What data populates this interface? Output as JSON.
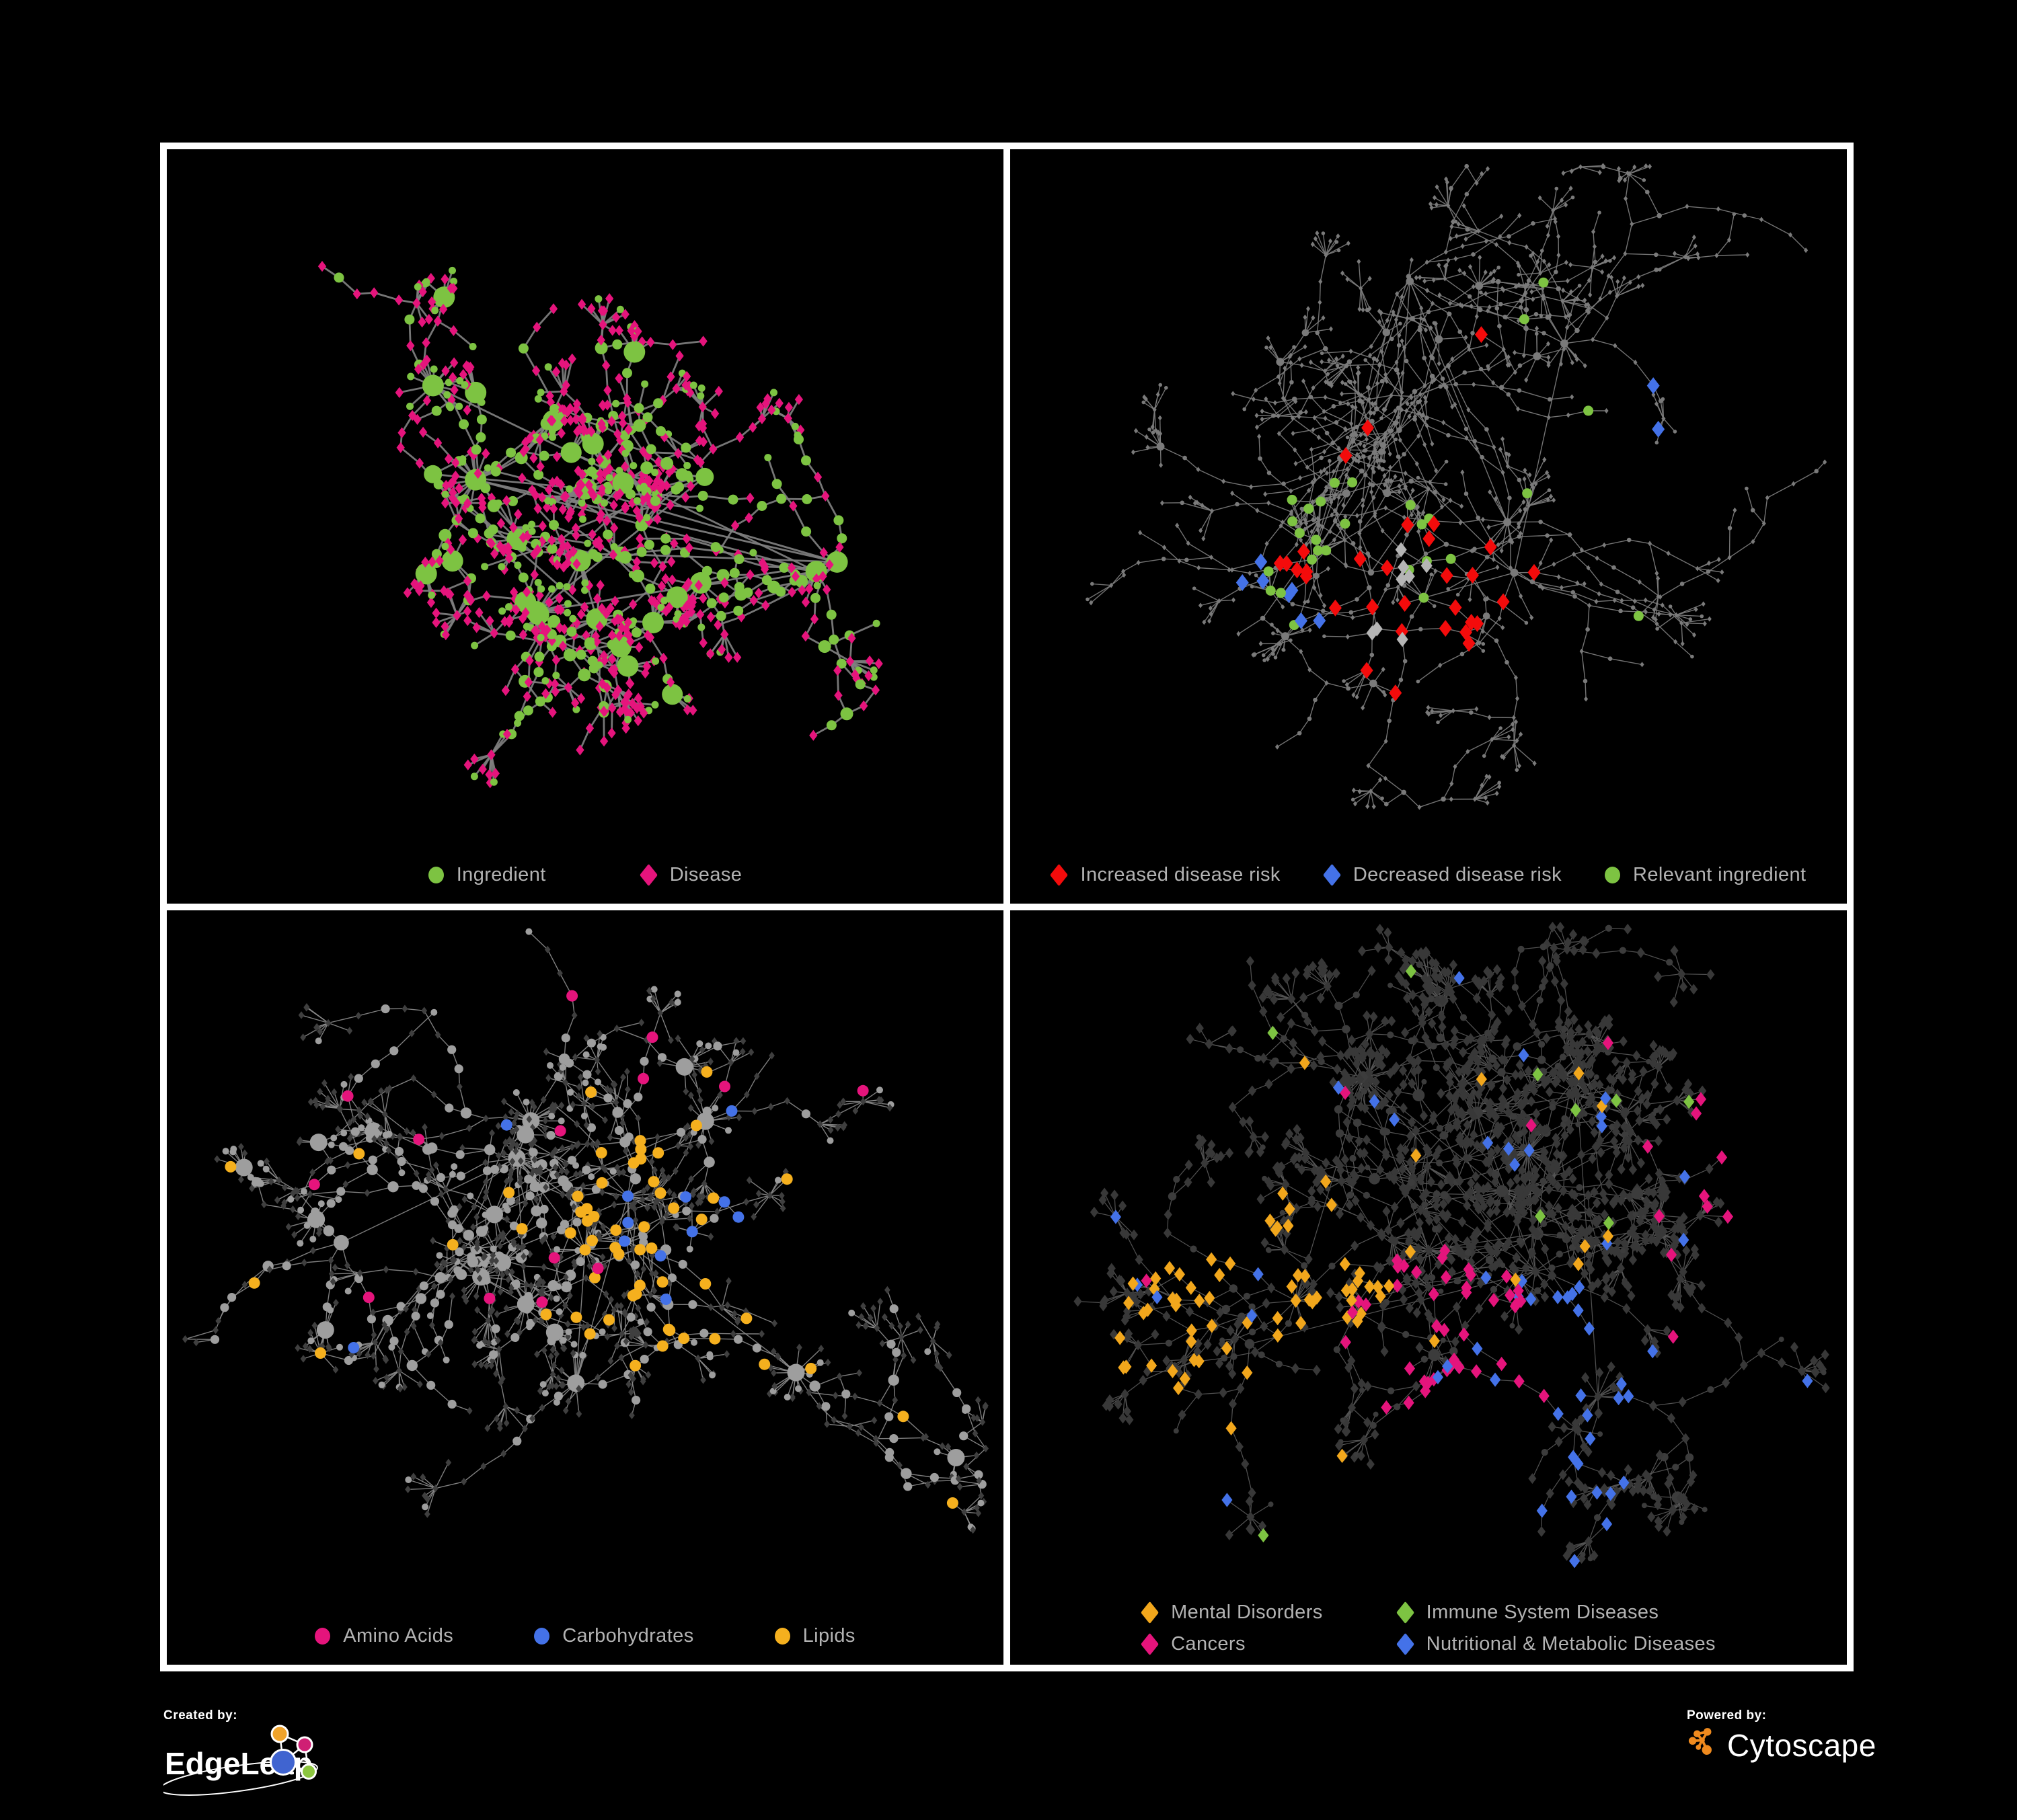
{
  "figure": {
    "background": "#000000",
    "frame_color": "#ffffff",
    "legend_text_color": "#b3b3b3"
  },
  "panels": [
    {
      "name": "ingredient-disease-network",
      "legend": [
        {
          "label": "Ingredient",
          "shape": "circle",
          "color": "#7dc342"
        },
        {
          "label": "Disease",
          "shape": "diamond",
          "color": "#e5147c"
        }
      ],
      "network": {
        "seed": 7,
        "hubs": 12,
        "spread": 0.34,
        "branchesPerHub": [
          3,
          5
        ],
        "branchLen": [
          3,
          7
        ],
        "step": [
          24,
          46
        ],
        "subBranchProb": 0.22,
        "burstProb": 0.45,
        "burstLeaves": [
          5,
          11
        ],
        "hubBurstProb": 0.72,
        "hubBurstLeaves": [
          7,
          14
        ],
        "edge": {
          "color": "#808080",
          "width": 2.8
        },
        "base": {
          "circleColor": "#7dc342",
          "diamondColor": "#e5147c",
          "circleR": [
            5.5,
            16
          ],
          "circleGrow": 2.0,
          "diamondR": 6.5,
          "circleProb": {
            "hub": 1.0,
            "chain": 0.48,
            "leaf": 0.26
          }
        },
        "paints": []
      }
    },
    {
      "name": "disease-risk-network",
      "legend": [
        {
          "label": "Increased disease risk",
          "shape": "diamond",
          "color": "#f40b0b"
        },
        {
          "label": "Decreased disease risk",
          "shape": "diamond",
          "color": "#4472e8"
        },
        {
          "label": "Relevant ingredient",
          "shape": "circle",
          "color": "#7dc342"
        }
      ],
      "network": {
        "seed": 29,
        "hubs": 11,
        "spread": 0.37,
        "branchesPerHub": [
          3,
          5
        ],
        "branchLen": [
          4,
          8
        ],
        "step": [
          26,
          50
        ],
        "subBranchProb": 0.26,
        "burstProb": 0.4,
        "burstLeaves": [
          4,
          9
        ],
        "hubBurstProb": 0.55,
        "hubBurstLeaves": [
          6,
          12
        ],
        "edge": {
          "color": "#7d7d7d",
          "width": 1.4
        },
        "base": {
          "circleColor": "#7a7a7a",
          "diamondColor": "#7a7a7a",
          "circleR": [
            2.8,
            6
          ],
          "circleGrow": 0.5,
          "diamondR": 3.2,
          "circleProb": {
            "hub": 0.9,
            "chain": 0.42,
            "leaf": 0.22
          }
        },
        "paints": [
          {
            "target": "diamond",
            "color": "#f40b0b",
            "size": 10,
            "count": 20,
            "at": {
              "fx": 0.5,
              "fy": 0.68
            }
          },
          {
            "target": "diamond",
            "color": "#f40b0b",
            "size": 10,
            "count": 6,
            "at": {
              "fx": 0.32,
              "fy": 0.62
            }
          },
          {
            "target": "diamond",
            "color": "#f40b0b",
            "size": 10,
            "count": 5,
            "scatter": true
          },
          {
            "target": "diamond",
            "color": "#4472e8",
            "size": 10,
            "count": 7,
            "at": {
              "fx": 0.33,
              "fy": 0.66
            }
          },
          {
            "target": "diamond",
            "color": "#4472e8",
            "size": 10,
            "count": 2,
            "at": {
              "fx": 0.82,
              "fy": 0.38
            }
          },
          {
            "target": "diamond",
            "color": "#b5b5b5",
            "size": 9,
            "count": 8,
            "at": {
              "fx": 0.47,
              "fy": 0.65
            }
          },
          {
            "target": "circle",
            "color": "#7dc342",
            "size": 7.5,
            "count": 22,
            "at": {
              "fx": 0.42,
              "fy": 0.62
            }
          },
          {
            "target": "circle",
            "color": "#7dc342",
            "size": 7.5,
            "count": 6,
            "scatter": true
          }
        ]
      }
    },
    {
      "name": "nutrient-class-network",
      "legend": [
        {
          "label": "Amino Acids",
          "shape": "circle",
          "color": "#e5147c"
        },
        {
          "label": "Carbohydrates",
          "shape": "circle",
          "color": "#4472e8"
        },
        {
          "label": "Lipids",
          "shape": "circle",
          "color": "#f5b01e"
        }
      ],
      "network": {
        "seed": 83,
        "hubs": 12,
        "spread": 0.34,
        "branchesPerHub": [
          3,
          5
        ],
        "branchLen": [
          3,
          8
        ],
        "step": [
          25,
          48
        ],
        "subBranchProb": 0.24,
        "burstProb": 0.45,
        "burstLeaves": [
          5,
          10
        ],
        "hubBurstProb": 0.85,
        "hubBurstLeaves": [
          10,
          20
        ],
        "edge": {
          "color": "#8a8a8a",
          "width": 1.4
        },
        "base": {
          "circleColor": "#9e9e9e",
          "diamondColor": "#3f3f3f",
          "circleR": [
            5,
            13
          ],
          "circleGrow": 1.6,
          "diamondR": 4.6,
          "circleProb": {
            "hub": 0.95,
            "chain": 0.5,
            "leaf": 0.24
          }
        },
        "paints": [
          {
            "target": "circle",
            "color": "#f5b01e",
            "size": 8.5,
            "count": 40,
            "at": {
              "fx": 0.63,
              "fy": 0.5
            }
          },
          {
            "target": "circle",
            "color": "#f5b01e",
            "size": 8.5,
            "count": 18,
            "scatter": true
          },
          {
            "target": "circle",
            "color": "#4472e8",
            "size": 8.5,
            "count": 9,
            "at": {
              "fx": 0.63,
              "fy": 0.48
            }
          },
          {
            "target": "circle",
            "color": "#4472e8",
            "size": 8.5,
            "count": 3,
            "scatter": true
          },
          {
            "target": "circle",
            "color": "#e5147c",
            "size": 8.5,
            "count": 14,
            "scatter": true
          }
        ]
      }
    },
    {
      "name": "disease-category-network",
      "legend": [
        {
          "label": "Mental Disorders",
          "shape": "diamond",
          "color": "#f2a71c"
        },
        {
          "label": "Immune System Diseases",
          "shape": "diamond",
          "color": "#7dc342"
        },
        {
          "label": "Cancers",
          "shape": "diamond",
          "color": "#e5147c"
        },
        {
          "label": "Nutritional & Metabolic Diseases",
          "shape": "diamond",
          "color": "#4472e8"
        }
      ],
      "network": {
        "seed": 61,
        "hubs": 12,
        "spread": 0.34,
        "branchesPerHub": [
          3,
          5
        ],
        "branchLen": [
          3,
          8
        ],
        "step": [
          25,
          48
        ],
        "subBranchProb": 0.24,
        "burstProb": 0.5,
        "burstLeaves": [
          5,
          11
        ],
        "hubBurstProb": 0.85,
        "hubBurstLeaves": [
          10,
          20
        ],
        "edge": {
          "color": "#585858",
          "width": 1.25
        },
        "base": {
          "circleColor": "#3c3c3c",
          "diamondColor": "#383838",
          "circleR": [
            4,
            9
          ],
          "circleGrow": 1.1,
          "diamondR": 6.4,
          "circleProb": {
            "hub": 0.55,
            "chain": 0.25,
            "leaf": 0.08
          }
        },
        "paints": [
          {
            "target": "diamond",
            "color": "#f2a71c",
            "size": 8.5,
            "count": 65,
            "at": {
              "fx": 0.3,
              "fy": 0.62
            }
          },
          {
            "target": "diamond",
            "color": "#f2a71c",
            "size": 8.5,
            "count": 12,
            "scatter": true
          },
          {
            "target": "diamond",
            "color": "#e5147c",
            "size": 8.5,
            "count": 42,
            "at": {
              "fx": 0.52,
              "fy": 0.66
            }
          },
          {
            "target": "diamond",
            "color": "#e5147c",
            "size": 8.5,
            "count": 6,
            "at": {
              "fx": 0.93,
              "fy": 0.36
            }
          },
          {
            "target": "diamond",
            "color": "#e5147c",
            "size": 8.5,
            "count": 8,
            "scatter": true
          },
          {
            "target": "diamond",
            "color": "#4472e8",
            "size": 8.5,
            "count": 28,
            "at": {
              "fx": 0.63,
              "fy": 0.72
            }
          },
          {
            "target": "diamond",
            "color": "#4472e8",
            "size": 8.5,
            "count": 26,
            "scatter": true
          },
          {
            "target": "diamond",
            "color": "#7dc342",
            "size": 8.5,
            "count": 9,
            "scatter": true
          }
        ]
      }
    }
  ],
  "footer": {
    "created_by": "Created by:",
    "edgeleap": {
      "name": "EdgeLeap",
      "colors": {
        "orange": "#f0a32a",
        "pink": "#cf1f74",
        "blue": "#4064d0",
        "green": "#8cc63f"
      }
    },
    "powered_by": "Powered by:",
    "cytoscape": {
      "name": "Cytoscape",
      "color": "#ef8a1e"
    }
  }
}
